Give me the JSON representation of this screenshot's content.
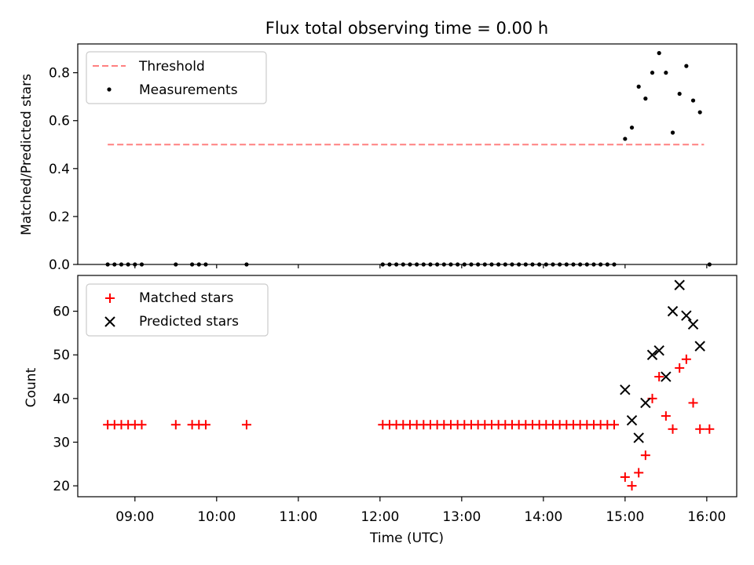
{
  "title": "Flux total observing time = 0.00 h",
  "chart_data": [
    {
      "type": "scatter",
      "panel": "top",
      "ylabel": "Matched/Predicted stars",
      "ylim": [
        0,
        0.92
      ],
      "yticks": [
        "0.0",
        "0.2",
        "0.4",
        "0.6",
        "0.8"
      ],
      "xlim": [
        "08:18",
        "16:22"
      ],
      "grid": false,
      "legend": "top-left",
      "threshold": {
        "name": "Threshold",
        "value": 0.5,
        "x": [
          "08:40",
          "15:58"
        ],
        "color": "#ff8080"
      },
      "measurements": {
        "name": "Measurements",
        "color": "#000000",
        "points": [
          [
            "08:40",
            0
          ],
          [
            "08:45",
            0
          ],
          [
            "08:50",
            0
          ],
          [
            "08:55",
            0
          ],
          [
            "09:00",
            0
          ],
          [
            "09:05",
            0
          ],
          [
            "09:30",
            0
          ],
          [
            "09:42",
            0
          ],
          [
            "09:47",
            0
          ],
          [
            "09:52",
            0
          ],
          [
            "10:22",
            0
          ],
          [
            "12:02",
            0
          ],
          [
            "12:07",
            0
          ],
          [
            "12:12",
            0
          ],
          [
            "12:17",
            0
          ],
          [
            "12:22",
            0
          ],
          [
            "12:27",
            0
          ],
          [
            "12:32",
            0
          ],
          [
            "12:37",
            0
          ],
          [
            "12:42",
            0
          ],
          [
            "12:47",
            0
          ],
          [
            "12:52",
            0
          ],
          [
            "12:57",
            0
          ],
          [
            "13:02",
            0
          ],
          [
            "13:07",
            0
          ],
          [
            "13:12",
            0
          ],
          [
            "13:17",
            0
          ],
          [
            "13:22",
            0
          ],
          [
            "13:27",
            0
          ],
          [
            "13:32",
            0
          ],
          [
            "13:37",
            0
          ],
          [
            "13:42",
            0
          ],
          [
            "13:47",
            0
          ],
          [
            "13:52",
            0
          ],
          [
            "13:57",
            0
          ],
          [
            "14:02",
            0
          ],
          [
            "14:07",
            0
          ],
          [
            "14:12",
            0
          ],
          [
            "14:17",
            0
          ],
          [
            "14:22",
            0
          ],
          [
            "14:27",
            0
          ],
          [
            "14:32",
            0
          ],
          [
            "14:37",
            0
          ],
          [
            "14:42",
            0
          ],
          [
            "14:47",
            0
          ],
          [
            "14:52",
            0
          ],
          [
            "15:00",
            0.524
          ],
          [
            "15:05",
            0.571
          ],
          [
            "15:10",
            0.742
          ],
          [
            "15:15",
            0.692
          ],
          [
            "15:20",
            0.8
          ],
          [
            "15:25",
            0.882
          ],
          [
            "15:30",
            0.8
          ],
          [
            "15:35",
            0.55
          ],
          [
            "15:40",
            0.712
          ],
          [
            "15:45",
            0.828
          ],
          [
            "15:50",
            0.684
          ],
          [
            "15:55",
            0.635
          ],
          [
            "16:02",
            0
          ]
        ]
      }
    },
    {
      "type": "scatter",
      "panel": "bottom",
      "xlabel": "Time (UTC)",
      "ylabel": "Count",
      "ylim": [
        17.5,
        68.2
      ],
      "yticks": [
        "20",
        "30",
        "40",
        "50",
        "60"
      ],
      "xlim": [
        "08:18",
        "16:22"
      ],
      "xticks": [
        "09:00",
        "10:00",
        "11:00",
        "12:00",
        "13:00",
        "14:00",
        "15:00",
        "16:00"
      ],
      "grid": false,
      "legend": "top-left",
      "series": [
        {
          "name": "Matched stars",
          "marker": "plus",
          "color": "#ff0000",
          "points": [
            [
              "08:40",
              34
            ],
            [
              "08:45",
              34
            ],
            [
              "08:50",
              34
            ],
            [
              "08:55",
              34
            ],
            [
              "09:00",
              34
            ],
            [
              "09:05",
              34
            ],
            [
              "09:30",
              34
            ],
            [
              "09:42",
              34
            ],
            [
              "09:47",
              34
            ],
            [
              "09:52",
              34
            ],
            [
              "10:22",
              34
            ],
            [
              "12:02",
              34
            ],
            [
              "12:07",
              34
            ],
            [
              "12:12",
              34
            ],
            [
              "12:17",
              34
            ],
            [
              "12:22",
              34
            ],
            [
              "12:27",
              34
            ],
            [
              "12:32",
              34
            ],
            [
              "12:37",
              34
            ],
            [
              "12:42",
              34
            ],
            [
              "12:47",
              34
            ],
            [
              "12:52",
              34
            ],
            [
              "12:57",
              34
            ],
            [
              "13:02",
              34
            ],
            [
              "13:07",
              34
            ],
            [
              "13:12",
              34
            ],
            [
              "13:17",
              34
            ],
            [
              "13:22",
              34
            ],
            [
              "13:27",
              34
            ],
            [
              "13:32",
              34
            ],
            [
              "13:37",
              34
            ],
            [
              "13:42",
              34
            ],
            [
              "13:47",
              34
            ],
            [
              "13:52",
              34
            ],
            [
              "13:57",
              34
            ],
            [
              "14:02",
              34
            ],
            [
              "14:07",
              34
            ],
            [
              "14:12",
              34
            ],
            [
              "14:17",
              34
            ],
            [
              "14:22",
              34
            ],
            [
              "14:27",
              34
            ],
            [
              "14:32",
              34
            ],
            [
              "14:37",
              34
            ],
            [
              "14:42",
              34
            ],
            [
              "14:47",
              34
            ],
            [
              "14:52",
              34
            ],
            [
              "15:00",
              22
            ],
            [
              "15:05",
              20
            ],
            [
              "15:10",
              23
            ],
            [
              "15:15",
              27
            ],
            [
              "15:20",
              40
            ],
            [
              "15:25",
              45
            ],
            [
              "15:30",
              36
            ],
            [
              "15:35",
              33
            ],
            [
              "15:40",
              47
            ],
            [
              "15:45",
              49
            ],
            [
              "15:50",
              39
            ],
            [
              "15:55",
              33
            ],
            [
              "16:02",
              33
            ]
          ]
        },
        {
          "name": "Predicted stars",
          "marker": "x",
          "color": "#000000",
          "points": [
            [
              "15:00",
              42
            ],
            [
              "15:05",
              35
            ],
            [
              "15:10",
              31
            ],
            [
              "15:15",
              39
            ],
            [
              "15:20",
              50
            ],
            [
              "15:25",
              51
            ],
            [
              "15:30",
              45
            ],
            [
              "15:35",
              60
            ],
            [
              "15:40",
              66
            ],
            [
              "15:45",
              59
            ],
            [
              "15:50",
              57
            ],
            [
              "15:55",
              52
            ]
          ]
        }
      ]
    }
  ]
}
